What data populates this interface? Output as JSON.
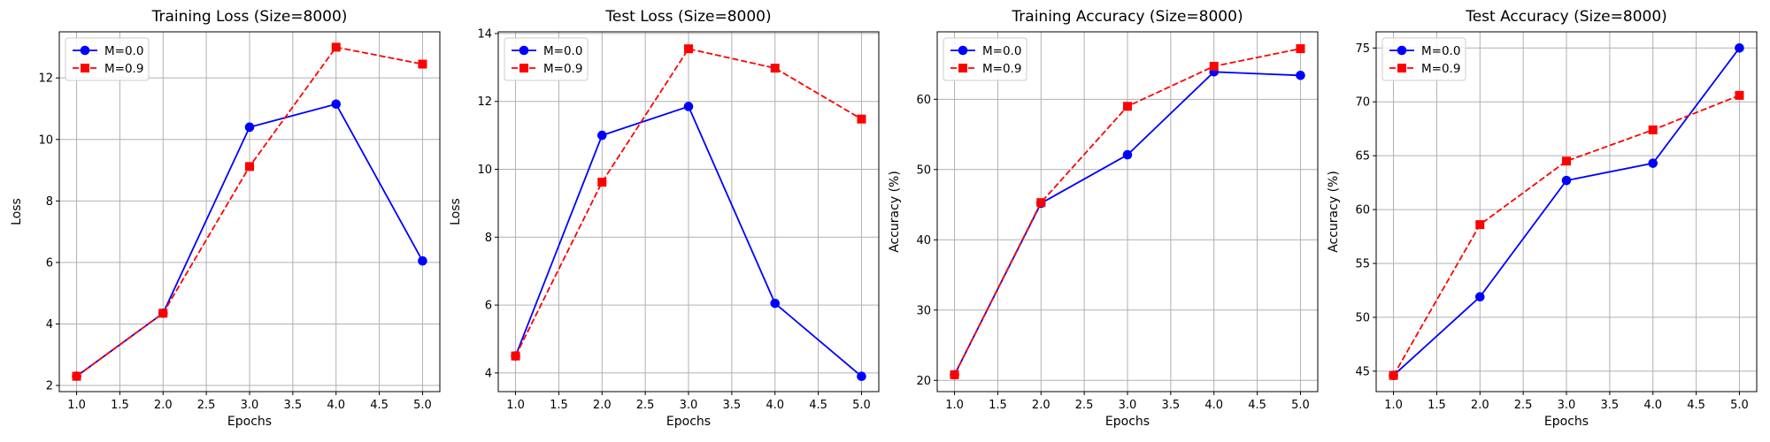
{
  "chart_data": [
    {
      "type": "line",
      "title": "Training Loss (Size=8000)",
      "xlabel": "Epochs",
      "ylabel": "Loss",
      "xlim": [
        0.8,
        5.2
      ],
      "ylim": [
        1.8,
        13.5
      ],
      "xticks": [
        1.0,
        1.5,
        2.0,
        2.5,
        3.0,
        3.5,
        4.0,
        4.5,
        5.0
      ],
      "xtick_labels": [
        "1.0",
        "1.5",
        "2.0",
        "2.5",
        "3.0",
        "3.5",
        "4.0",
        "4.5",
        "5.0"
      ],
      "yticks": [
        2,
        4,
        6,
        8,
        10,
        12
      ],
      "ytick_labels": [
        "2",
        "4",
        "6",
        "8",
        "10",
        "12"
      ],
      "grid": true,
      "legend": "upper-left",
      "x": [
        1,
        2,
        3,
        4,
        5
      ],
      "series": [
        {
          "name": "M=0.0",
          "values": [
            2.3,
            4.35,
            10.4,
            11.15,
            6.05
          ],
          "color": "#0000ff",
          "marker": "circle",
          "linestyle": "solid"
        },
        {
          "name": "M=0.9",
          "values": [
            2.3,
            4.35,
            9.12,
            13.0,
            12.45
          ],
          "color": "#ff0000",
          "marker": "square",
          "linestyle": "dashed"
        }
      ]
    },
    {
      "type": "line",
      "title": "Test Loss (Size=8000)",
      "xlabel": "Epochs",
      "ylabel": "Loss",
      "xlim": [
        0.8,
        5.2
      ],
      "ylim": [
        3.45,
        14.05
      ],
      "xticks": [
        1.0,
        1.5,
        2.0,
        2.5,
        3.0,
        3.5,
        4.0,
        4.5,
        5.0
      ],
      "xtick_labels": [
        "1.0",
        "1.5",
        "2.0",
        "2.5",
        "3.0",
        "3.5",
        "4.0",
        "4.5",
        "5.0"
      ],
      "yticks": [
        4,
        6,
        8,
        10,
        12,
        14
      ],
      "ytick_labels": [
        "4",
        "6",
        "8",
        "10",
        "12",
        "14"
      ],
      "grid": true,
      "legend": "upper-left",
      "x": [
        1,
        2,
        3,
        4,
        5
      ],
      "series": [
        {
          "name": "M=0.0",
          "values": [
            4.5,
            11.0,
            11.85,
            6.05,
            3.9
          ],
          "color": "#0000ff",
          "marker": "circle",
          "linestyle": "solid"
        },
        {
          "name": "M=0.9",
          "values": [
            4.5,
            9.62,
            13.55,
            12.98,
            11.48
          ],
          "color": "#ff0000",
          "marker": "square",
          "linestyle": "dashed"
        }
      ]
    },
    {
      "type": "line",
      "title": "Training Accuracy (Size=8000)",
      "xlabel": "Epochs",
      "ylabel": "Accuracy (%)",
      "xlim": [
        0.8,
        5.2
      ],
      "ylim": [
        18.4,
        69.6
      ],
      "xticks": [
        1.0,
        1.5,
        2.0,
        2.5,
        3.0,
        3.5,
        4.0,
        4.5,
        5.0
      ],
      "xtick_labels": [
        "1.0",
        "1.5",
        "2.0",
        "2.5",
        "3.0",
        "3.5",
        "4.0",
        "4.5",
        "5.0"
      ],
      "yticks": [
        20,
        30,
        40,
        50,
        60
      ],
      "ytick_labels": [
        "20",
        "30",
        "40",
        "50",
        "60"
      ],
      "grid": true,
      "legend": "upper-left",
      "x": [
        1,
        2,
        3,
        4,
        5
      ],
      "series": [
        {
          "name": "M=0.0",
          "values": [
            20.8,
            45.2,
            52.1,
            63.9,
            63.4
          ],
          "color": "#0000ff",
          "marker": "circle",
          "linestyle": "solid"
        },
        {
          "name": "M=0.9",
          "values": [
            20.8,
            45.3,
            59.0,
            64.7,
            67.2
          ],
          "color": "#ff0000",
          "marker": "square",
          "linestyle": "dashed"
        }
      ]
    },
    {
      "type": "line",
      "title": "Test Accuracy (Size=8000)",
      "xlabel": "Epochs",
      "ylabel": "Accuracy (%)",
      "xlim": [
        0.8,
        5.2
      ],
      "ylim": [
        43.1,
        76.5
      ],
      "xticks": [
        1.0,
        1.5,
        2.0,
        2.5,
        3.0,
        3.5,
        4.0,
        4.5,
        5.0
      ],
      "xtick_labels": [
        "1.0",
        "1.5",
        "2.0",
        "2.5",
        "3.0",
        "3.5",
        "4.0",
        "4.5",
        "5.0"
      ],
      "yticks": [
        45,
        50,
        55,
        60,
        65,
        70,
        75
      ],
      "ytick_labels": [
        "45",
        "50",
        "55",
        "60",
        "65",
        "70",
        "75"
      ],
      "grid": true,
      "legend": "upper-left",
      "x": [
        1,
        2,
        3,
        4,
        5
      ],
      "series": [
        {
          "name": "M=0.0",
          "values": [
            44.6,
            51.9,
            62.7,
            64.3,
            75.0
          ],
          "color": "#0000ff",
          "marker": "circle",
          "linestyle": "solid"
        },
        {
          "name": "M=0.9",
          "values": [
            44.6,
            58.6,
            64.5,
            67.4,
            70.6
          ],
          "color": "#ff0000",
          "marker": "square",
          "linestyle": "dashed"
        }
      ]
    }
  ]
}
